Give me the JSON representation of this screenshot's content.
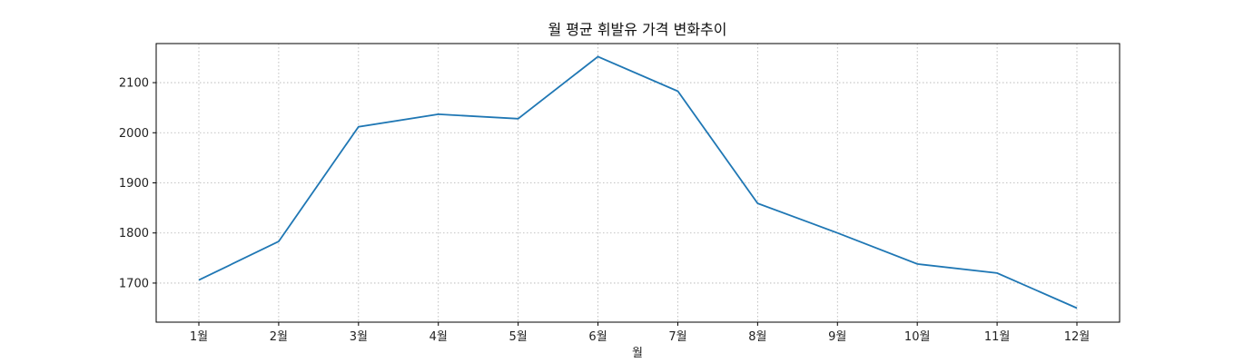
{
  "chart_data": {
    "type": "line",
    "title": "월 평균 휘발유 가격 변화추이",
    "xlabel": "월",
    "ylabel": "",
    "categories": [
      "1월",
      "2월",
      "3월",
      "4월",
      "5월",
      "6월",
      "7월",
      "8월",
      "9월",
      "10월",
      "11월",
      "12월"
    ],
    "series": [
      {
        "values": [
          1706,
          1783,
          2012,
          2037,
          2028,
          2152,
          2083,
          1859,
          1800,
          1738,
          1720,
          1650
        ],
        "color": "#1f77b4"
      }
    ],
    "ylim": [
      1622,
      2178
    ],
    "yticks": [
      1700,
      1800,
      1900,
      2000,
      2100
    ],
    "grid": true,
    "legend": "none"
  }
}
